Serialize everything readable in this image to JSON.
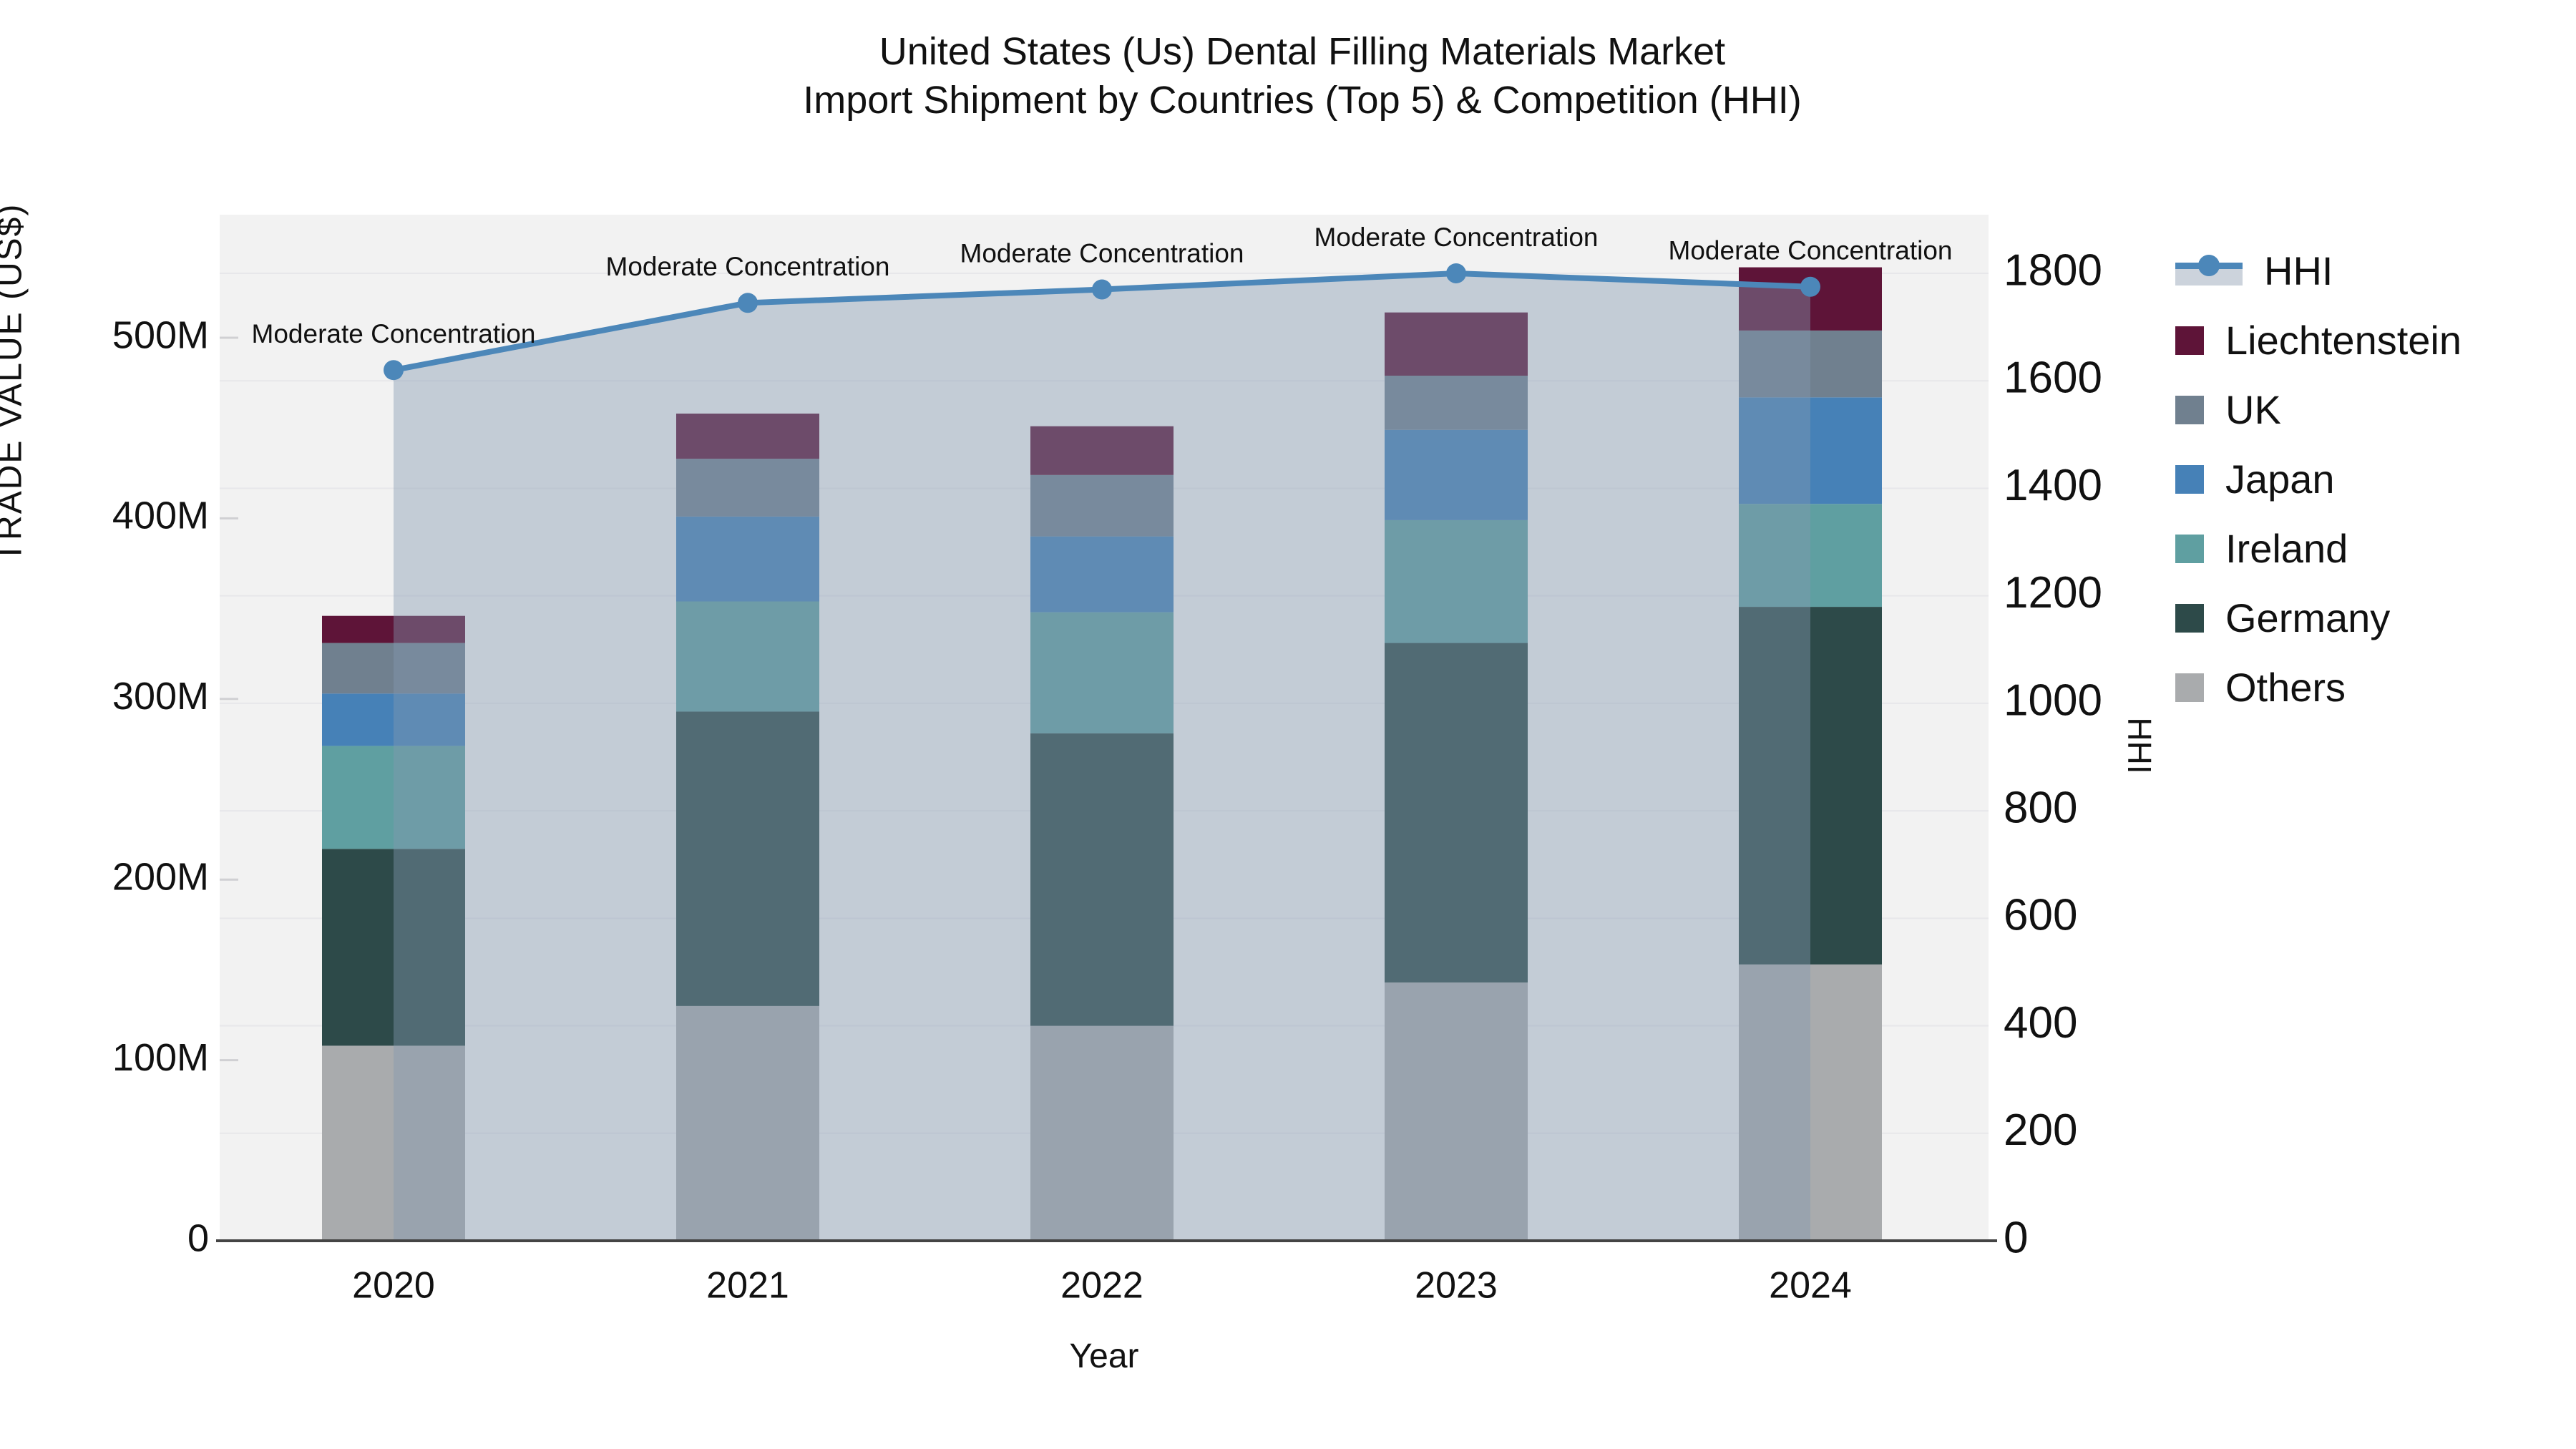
{
  "title": {
    "line1": "United States (Us) Dental Filling Materials Market",
    "line2": "Import Shipment by Countries (Top 5) & Competition (HHI)"
  },
  "axes": {
    "left": {
      "title": "TRADE VALUE (US$)",
      "tick_labels": [
        "0",
        "100M",
        "200M",
        "300M",
        "400M",
        "500M"
      ],
      "tick_values": [
        0,
        100,
        200,
        300,
        400,
        500
      ],
      "units": "M US$"
    },
    "right": {
      "title": "HHI",
      "tick_values": [
        0,
        200,
        400,
        600,
        800,
        1000,
        1200,
        1400,
        1600,
        1800
      ]
    },
    "x": {
      "title": "Year",
      "categories": [
        "2020",
        "2021",
        "2022",
        "2023",
        "2024"
      ]
    }
  },
  "legend": {
    "items": [
      {
        "label": "HHI",
        "type": "line",
        "color": "#4c87b9"
      },
      {
        "label": "Liechtenstein",
        "type": "square",
        "color": "#5e1438"
      },
      {
        "label": "UK",
        "type": "square",
        "color": "#70808f"
      },
      {
        "label": "Japan",
        "type": "square",
        "color": "#4681b7"
      },
      {
        "label": "Ireland",
        "type": "square",
        "color": "#5f9fa1"
      },
      {
        "label": "Germany",
        "type": "square",
        "color": "#2d4a49"
      },
      {
        "label": "Others",
        "type": "square",
        "color": "#a9abad"
      }
    ]
  },
  "colors": {
    "plot_bg": "#f2f2f2",
    "grid": "#e7e7ea",
    "axis_line": "#444444",
    "tick_stub": "#d0d0d3",
    "hhi_line": "#4c87b9",
    "hhi_fill": "rgba(132,152,177,0.42)",
    "text": "#111111"
  },
  "chart_data": {
    "type": [
      "bar",
      "line"
    ],
    "title": "United States (Us) Dental Filling Materials Market — Import Shipment by Countries (Top 5) & Competition (HHI)",
    "xlabel": "Year",
    "ylabel": "TRADE VALUE (US$)",
    "y2label": "HHI",
    "categories": [
      "2020",
      "2021",
      "2022",
      "2023",
      "2024"
    ],
    "bar_units": "million US$",
    "series": [
      {
        "name": "Others",
        "values": [
          108,
          130,
          119,
          143,
          153
        ],
        "color": "#a9abad"
      },
      {
        "name": "Germany",
        "values": [
          109,
          163,
          162,
          188,
          198
        ],
        "color": "#2d4a49"
      },
      {
        "name": "Ireland",
        "values": [
          57,
          61,
          67,
          68,
          57
        ],
        "color": "#5f9fa1"
      },
      {
        "name": "Japan",
        "values": [
          29,
          47,
          42,
          50,
          59
        ],
        "color": "#4681b7"
      },
      {
        "name": "UK",
        "values": [
          28,
          32,
          34,
          30,
          37
        ],
        "color": "#70808f"
      },
      {
        "name": "Liechtenstein",
        "values": [
          15,
          25,
          27,
          35,
          35
        ],
        "color": "#5e1438"
      }
    ],
    "stack_totals": [
      346,
      458,
      451,
      514,
      539
    ],
    "line_series": {
      "name": "HHI",
      "values": [
        1620,
        1745,
        1770,
        1800,
        1775
      ],
      "axis": "right",
      "color": "#4c87b9",
      "area_fill": "rgba(132,152,177,0.42)"
    },
    "annotations": [
      "Moderate Concentration",
      "Moderate Concentration",
      "Moderate Concentration",
      "Moderate Concentration",
      "Moderate Concentration"
    ],
    "ylim": [
      0,
      568
    ],
    "y2lim": [
      0,
      1910
    ],
    "grid": "horizontal, at right-axis ticks every 200",
    "legend_position": "right"
  }
}
